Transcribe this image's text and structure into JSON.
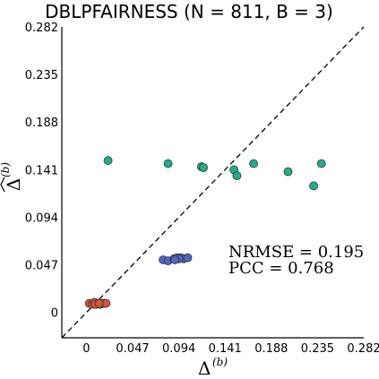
{
  "chart_data": {
    "type": "scatter",
    "title": "DBLPFAIRNESS (N = 811, B = 3)",
    "xlabel": "Δ",
    "xlabel_sup": "(b)",
    "ylabel": "Δ",
    "ylabel_sup": "(b)",
    "xlim": [
      -0.025,
      0.282
    ],
    "ylim": [
      -0.025,
      0.282
    ],
    "xticks": [
      0,
      0.047,
      0.094,
      0.141,
      0.188,
      0.235,
      0.282
    ],
    "xtick_labels": [
      "0",
      "0.047",
      "0.094",
      "0.141",
      "0.188",
      "0.235",
      "0.282"
    ],
    "yticks": [
      0,
      0.047,
      0.094,
      0.141,
      0.188,
      0.235,
      0.282
    ],
    "ytick_labels": [
      "0",
      "0.047",
      "0.094",
      "0.141",
      "0.188",
      "0.235",
      "0.282"
    ],
    "grid": false,
    "reference_line": "y = x (dashed)",
    "annotations": [
      "NRMSE = 0.195",
      "PCC = 0.768"
    ],
    "series": [
      {
        "color": "#d9533b",
        "points": [
          [
            0.003,
            0.009
          ],
          [
            0.006,
            0.008
          ],
          [
            0.008,
            0.01
          ],
          [
            0.01,
            0.008
          ],
          [
            0.012,
            0.009
          ],
          [
            0.014,
            0.008
          ],
          [
            0.016,
            0.009
          ],
          [
            0.018,
            0.009
          ],
          [
            0.02,
            0.009
          ],
          [
            0.009,
            0.008
          ],
          [
            0.013,
            0.009
          ]
        ]
      },
      {
        "color": "#4f63c9",
        "points": [
          [
            0.078,
            0.052
          ],
          [
            0.083,
            0.051
          ],
          [
            0.089,
            0.053
          ],
          [
            0.092,
            0.054
          ],
          [
            0.096,
            0.054
          ],
          [
            0.099,
            0.053
          ],
          [
            0.103,
            0.054
          ],
          [
            0.094,
            0.053
          ],
          [
            0.09,
            0.052
          ]
        ]
      },
      {
        "color": "#1fae8c",
        "points": [
          [
            0.022,
            0.15
          ],
          [
            0.083,
            0.147
          ],
          [
            0.117,
            0.144
          ],
          [
            0.119,
            0.143
          ],
          [
            0.15,
            0.141
          ],
          [
            0.153,
            0.135
          ],
          [
            0.17,
            0.147
          ],
          [
            0.205,
            0.139
          ],
          [
            0.231,
            0.125
          ],
          [
            0.239,
            0.147
          ]
        ]
      }
    ]
  }
}
